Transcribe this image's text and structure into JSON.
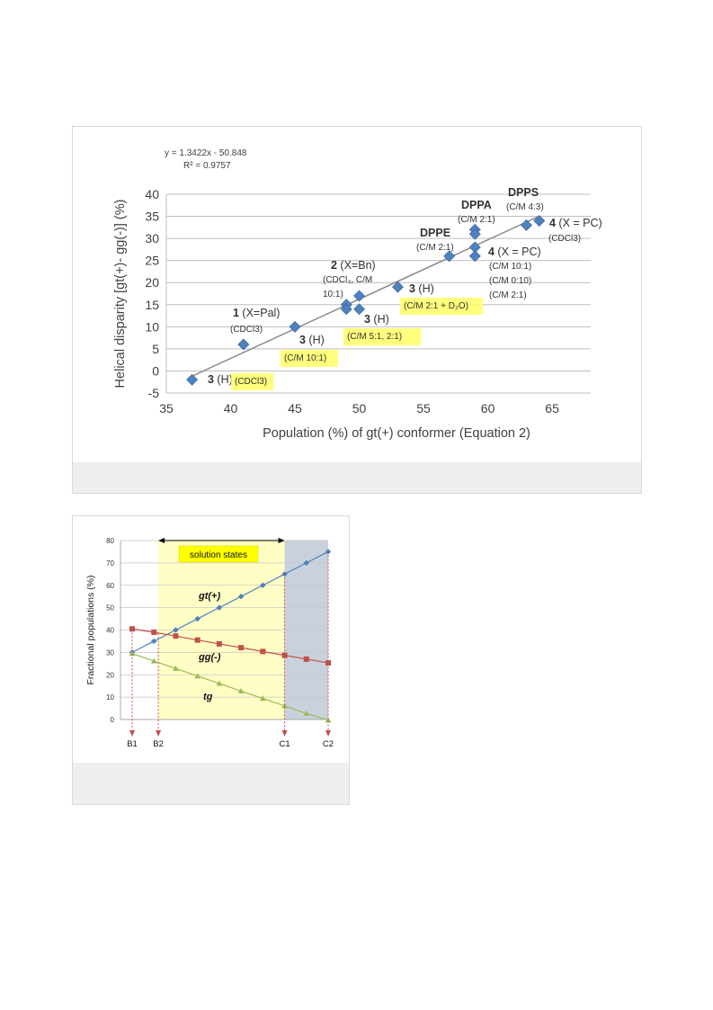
{
  "chart_data": [
    {
      "type": "scatter",
      "equation": "y = 1.3422x - 50.848",
      "r_squared": "R² = 0.9757",
      "xlabel": "Population (%) of gt(+) conformer (Equation 2)",
      "ylabel": "Helical disparity [gt(+)- gg(-)] (%)",
      "xlim": [
        35,
        68
      ],
      "ylim": [
        -5,
        40
      ],
      "x_ticks": [
        35,
        40,
        45,
        50,
        55,
        60,
        65
      ],
      "y_ticks": [
        -5,
        0,
        5,
        10,
        15,
        20,
        25,
        30,
        35,
        40
      ],
      "grid": "horizontal",
      "marker_color": "#4f81bd",
      "trendline": {
        "slope": 1.3422,
        "intercept": -50.848,
        "x_range": [
          37,
          64
        ],
        "color": "#8c8c8c"
      },
      "points": [
        {
          "x": 37,
          "y": -2
        },
        {
          "x": 41,
          "y": 6
        },
        {
          "x": 45,
          "y": 10
        },
        {
          "x": 49,
          "y": 15
        },
        {
          "x": 49,
          "y": 14
        },
        {
          "x": 50,
          "y": 17
        },
        {
          "x": 50,
          "y": 14
        },
        {
          "x": 53,
          "y": 19
        },
        {
          "x": 57,
          "y": 26
        },
        {
          "x": 59,
          "y": 32
        },
        {
          "x": 59,
          "y": 31
        },
        {
          "x": 59,
          "y": 28
        },
        {
          "x": 59,
          "y": 26
        },
        {
          "x": 63,
          "y": 33
        },
        {
          "x": 64,
          "y": 34
        }
      ],
      "annotations": [
        {
          "bold": "3",
          "text": " (H)"
        },
        {
          "text": "(CDCl3)",
          "highlight": true
        },
        {
          "bold": "1",
          "text": " (X=Pal)"
        },
        {
          "text": "(CDCl3)"
        },
        {
          "bold": "3",
          "text": " (H)"
        },
        {
          "text": "(C/M 10:1)",
          "highlight": true
        },
        {
          "bold": "2",
          "text": " (X=Bn)"
        },
        {
          "text": "(CDCl₃, C/M"
        },
        {
          "text": "10:1)"
        },
        {
          "bold": "3",
          "text": " (H)"
        },
        {
          "text": "(C/M 2:1 + D₂O)",
          "highlight": true
        },
        {
          "bold": "3",
          "text": " (H)"
        },
        {
          "text": "(C/M 5:1, 2:1)",
          "highlight": true
        },
        {
          "bold": "DPPE"
        },
        {
          "text": "(C/M 2:1)"
        },
        {
          "bold": "DPPA"
        },
        {
          "text": "(C/M 2:1)"
        },
        {
          "bold": "DPPS"
        },
        {
          "text": "(C/M 4:3)"
        },
        {
          "bold": "4",
          "text": " (X = PC)"
        },
        {
          "text": "(CDCl3)"
        },
        {
          "bold": "4",
          "text": " (X = PC)"
        },
        {
          "text": "(C/M 10:1)"
        },
        {
          "text": "(C/M 0:10)"
        },
        {
          "text": "(C/M 2:1)"
        }
      ]
    },
    {
      "type": "line",
      "ylabel": "Fractional populations (%)",
      "ylim": [
        0,
        80
      ],
      "y_ticks": [
        0,
        10,
        20,
        30,
        40,
        50,
        60,
        70,
        80
      ],
      "grid": "horizontal",
      "x": [
        0,
        1,
        2,
        3,
        4,
        5,
        6,
        7,
        8,
        9
      ],
      "series": [
        {
          "name": "gt(+)",
          "color": "#4f81bd",
          "marker": "diamond",
          "values": [
            30,
            35,
            40,
            45,
            50,
            55,
            60,
            65,
            70,
            75
          ]
        },
        {
          "name": "gg(-)",
          "color": "#c0504d",
          "marker": "square",
          "values": [
            40.5,
            39,
            37.3,
            35.5,
            33.8,
            32.1,
            30.4,
            28.7,
            27,
            25.3
          ]
        },
        {
          "name": "tg",
          "color": "#9bbb59",
          "marker": "triangle",
          "values": [
            29.5,
            26.1,
            22.8,
            19.4,
            16.1,
            12.7,
            9.4,
            6.1,
            2.7,
            -0.3
          ]
        }
      ],
      "solution_states_label": "solution states",
      "solution_region_x": [
        1.2,
        7
      ],
      "shaded_region_x": [
        7,
        9
      ],
      "solution_color": "#ffffc5",
      "shaded_color": "#c9d2dc",
      "markers": [
        {
          "label": "B1",
          "x": 0,
          "y": 40.5
        },
        {
          "label": "B2",
          "x": 1.2,
          "y": 38.5
        },
        {
          "label": "C1",
          "x": 7,
          "y": 65
        },
        {
          "label": "C2",
          "x": 9,
          "y": 75
        }
      ]
    }
  ]
}
